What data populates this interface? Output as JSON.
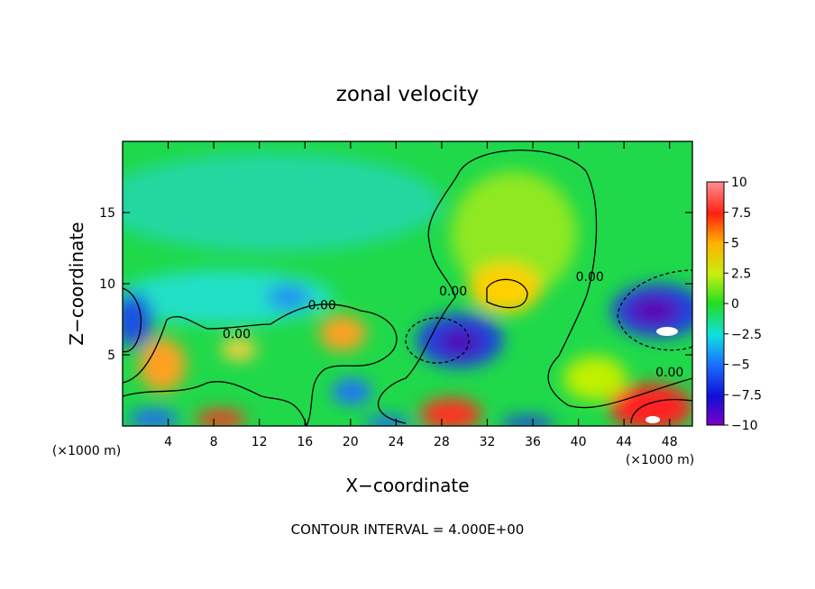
{
  "chart_data": {
    "type": "heatmap",
    "title": "zonal velocity",
    "xlabel": "X−coordinate",
    "ylabel": "Z−coordinate",
    "x_units_left": "(×1000 m)",
    "x_units_right": "(×1000 m)",
    "footer": "CONTOUR INTERVAL = 4.000E+00",
    "xlim": [
      0,
      50
    ],
    "ylim": [
      0,
      20
    ],
    "x_ticks": [
      4,
      8,
      12,
      16,
      20,
      24,
      28,
      32,
      36,
      40,
      44,
      48
    ],
    "x_tick_labels": [
      "4",
      "8",
      "12",
      "16",
      "20",
      "24",
      "28",
      "32",
      "36",
      "40",
      "44",
      "48"
    ],
    "y_ticks": [
      5,
      10,
      15
    ],
    "y_tick_labels": [
      "5",
      "10",
      "15"
    ],
    "colorbar": {
      "min": -10,
      "max": 10,
      "ticks": [
        10,
        7.5,
        5,
        2.5,
        0,
        -2.5,
        -5,
        -7.5,
        -10
      ],
      "tick_labels": [
        "10",
        "7.5",
        "5",
        "2.5",
        "0",
        "−2.5",
        "−5",
        "−7.5",
        "−10"
      ]
    },
    "contour_labels": [
      {
        "text": "0.00",
        "x": 10,
        "z": 6.5
      },
      {
        "text": "0.00",
        "x": 17.5,
        "z": 8.5
      },
      {
        "text": "0.00",
        "x": 29,
        "z": 9.5
      },
      {
        "text": "0.00",
        "x": 41,
        "z": 10.5
      },
      {
        "text": "0.00",
        "x": 48,
        "z": 3.8
      }
    ],
    "features": [
      {
        "kind": "min",
        "x": 30,
        "z": 5.8,
        "value": -9
      },
      {
        "kind": "min",
        "x": 46.5,
        "z": 8.0,
        "value": -9
      },
      {
        "kind": "min",
        "x": 0.5,
        "z": 7.5,
        "value": -6
      },
      {
        "kind": "max",
        "x": 33.5,
        "z": 9.5,
        "value": 5
      },
      {
        "kind": "max",
        "x": 47,
        "z": 0.8,
        "value": 10
      },
      {
        "kind": "max",
        "x": 29,
        "z": 0.8,
        "value": 8
      },
      {
        "kind": "max",
        "x": 4,
        "z": 4.5,
        "value": 5
      },
      {
        "kind": "max",
        "x": 18.5,
        "z": 6.5,
        "value": 5
      }
    ]
  }
}
